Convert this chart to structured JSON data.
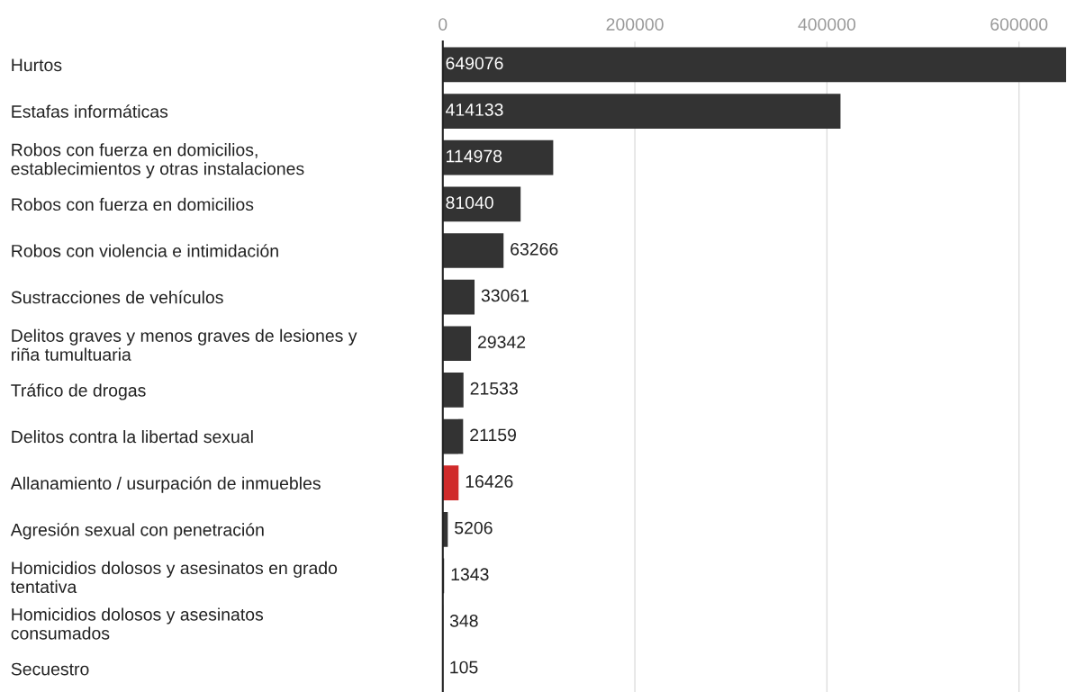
{
  "chart_data": {
    "type": "bar",
    "orientation": "horizontal",
    "categories": [
      "Hurtos",
      "Estafas informáticas",
      "Robos con fuerza en domicilios,\nestablecimientos y otras instalaciones",
      "Robos con fuerza en domicilios",
      "Robos con violencia e intimidación",
      "Sustracciones de vehículos",
      "Delitos graves y menos graves de lesiones y\nriña tumultuaria",
      "Tráfico de drogas",
      "Delitos contra la libertad sexual",
      "Allanamiento / usurpación de inmuebles",
      "Agresión sexual con penetración",
      "Homicidios dolosos y asesinatos en grado\ntentativa",
      "Homicidios dolosos y asesinatos\nconsumados",
      "Secuestro"
    ],
    "values": [
      649076,
      414133,
      114978,
      81040,
      63266,
      33061,
      29342,
      21533,
      21159,
      16426,
      5206,
      1343,
      348,
      105
    ],
    "colors": [
      "#333333",
      "#333333",
      "#333333",
      "#333333",
      "#333333",
      "#333333",
      "#333333",
      "#333333",
      "#333333",
      "#d02a2a",
      "#333333",
      "#333333",
      "#333333",
      "#333333"
    ],
    "xlim": [
      0,
      650000
    ],
    "xticks": [
      0,
      200000,
      400000,
      600000
    ],
    "grid": "x",
    "data_labels": true
  }
}
